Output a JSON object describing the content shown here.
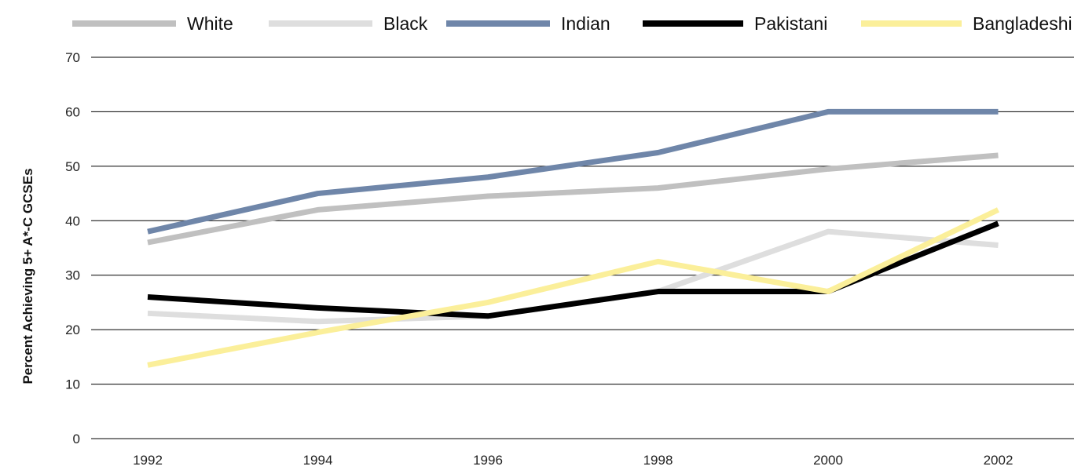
{
  "chart_data": {
    "type": "line",
    "title": "",
    "xlabel": "",
    "ylabel": "Percent Achieving 5+ A*-C GCSEs",
    "x": [
      1992,
      1994,
      1996,
      1998,
      2000,
      2002
    ],
    "x_tick_labels": [
      "1992",
      "1994",
      "1996",
      "1998",
      "2000",
      "2002"
    ],
    "ylim": [
      0,
      70
    ],
    "y_ticks": [
      0,
      10,
      20,
      30,
      40,
      50,
      60,
      70
    ],
    "y_tick_labels": [
      "0",
      "10",
      "20",
      "30",
      "40",
      "50",
      "60",
      "70"
    ],
    "grid": "horizontal",
    "legend_position": "top",
    "series": [
      {
        "name": "White",
        "color": "#c0c0c0",
        "values": [
          36,
          42,
          44.5,
          46,
          49.5,
          52
        ]
      },
      {
        "name": "Black",
        "color": "#dedede",
        "values": [
          23,
          21.5,
          22.5,
          27,
          38,
          35.5
        ]
      },
      {
        "name": "Indian",
        "color": "#6f86a9",
        "values": [
          38,
          45,
          48,
          52.5,
          60,
          60
        ]
      },
      {
        "name": "Pakistani",
        "color": "#000000",
        "values": [
          26,
          24,
          22.5,
          27,
          27,
          39.5
        ]
      },
      {
        "name": "Bangladeshi",
        "color": "#fbef9a",
        "values": [
          13.5,
          19.5,
          25,
          32.5,
          27,
          42
        ]
      }
    ]
  }
}
